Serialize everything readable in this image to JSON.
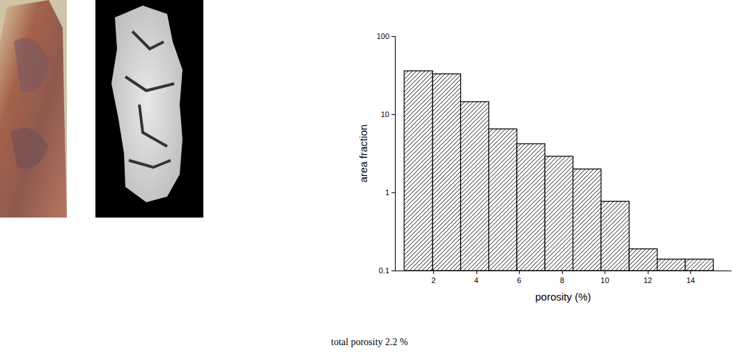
{
  "chart_data": {
    "type": "histogram",
    "x_label": "porosity (%)",
    "y_label": "area fraction",
    "caption": "total porosity 2.2 %",
    "bins": [
      0.63,
      1.96,
      3.27,
      4.58,
      5.89,
      7.2,
      8.51,
      9.82,
      11.13,
      12.44,
      13.75,
      15.06
    ],
    "values": [
      36,
      33,
      14.5,
      6.5,
      4.2,
      2.9,
      2.0,
      0.77,
      0.19,
      0.14,
      0.14
    ],
    "color": "#000000",
    "xlim": [
      0.2,
      15.9
    ],
    "xticks": [
      2,
      4,
      6,
      8,
      10,
      12,
      14
    ],
    "ylim": [
      0.1,
      100
    ],
    "yticks": [
      0.1,
      1,
      10,
      100
    ],
    "log": "y",
    "grid": false
  }
}
